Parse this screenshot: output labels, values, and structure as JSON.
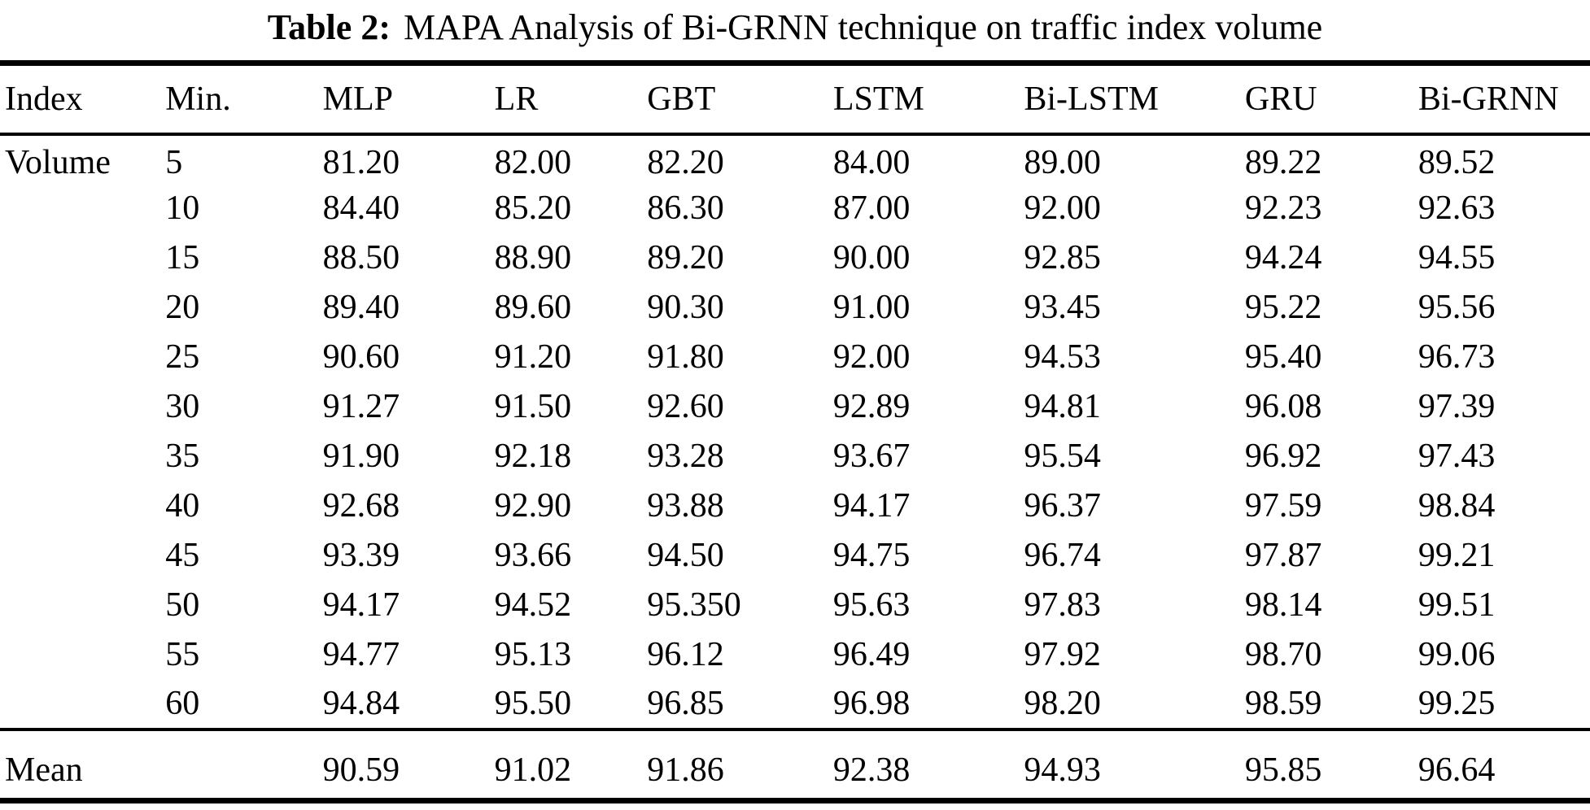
{
  "title": {
    "label": "Table 2:",
    "text": "MAPA Analysis of Bi-GRNN technique on traffic index volume"
  },
  "table": {
    "columns": [
      "Index",
      "Min.",
      "MLP",
      "LR",
      "GBT",
      "LSTM",
      "Bi-LSTM",
      "GRU",
      "Bi-GRNN"
    ],
    "rows": [
      [
        "Volume",
        "5",
        "81.20",
        "82.00",
        "82.20",
        "84.00",
        "89.00",
        "89.22",
        "89.52"
      ],
      [
        "",
        "10",
        "84.40",
        "85.20",
        "86.30",
        "87.00",
        "92.00",
        "92.23",
        "92.63"
      ],
      [
        "",
        "15",
        "88.50",
        "88.90",
        "89.20",
        "90.00",
        "92.85",
        "94.24",
        "94.55"
      ],
      [
        "",
        "20",
        "89.40",
        "89.60",
        "90.30",
        "91.00",
        "93.45",
        "95.22",
        "95.56"
      ],
      [
        "",
        "25",
        "90.60",
        "91.20",
        "91.80",
        "92.00",
        "94.53",
        "95.40",
        "96.73"
      ],
      [
        "",
        "30",
        "91.27",
        "91.50",
        "92.60",
        "92.89",
        "94.81",
        "96.08",
        "97.39"
      ],
      [
        "",
        "35",
        "91.90",
        "92.18",
        "93.28",
        "93.67",
        "95.54",
        "96.92",
        "97.43"
      ],
      [
        "",
        "40",
        "92.68",
        "92.90",
        "93.88",
        "94.17",
        "96.37",
        "97.59",
        "98.84"
      ],
      [
        "",
        "45",
        "93.39",
        "93.66",
        "94.50",
        "94.75",
        "96.74",
        "97.87",
        "99.21"
      ],
      [
        "",
        "50",
        "94.17",
        "94.52",
        "95.350",
        "95.63",
        "97.83",
        "98.14",
        "99.51"
      ],
      [
        "",
        "55",
        "94.77",
        "95.13",
        "96.12",
        "96.49",
        "97.92",
        "98.70",
        "99.06"
      ],
      [
        "",
        "60",
        "94.84",
        "95.50",
        "96.85",
        "96.98",
        "98.20",
        "98.59",
        "99.25"
      ]
    ],
    "footer": [
      "Mean",
      "",
      "90.59",
      "91.02",
      "91.86",
      "92.38",
      "94.93",
      "95.85",
      "96.64"
    ]
  }
}
